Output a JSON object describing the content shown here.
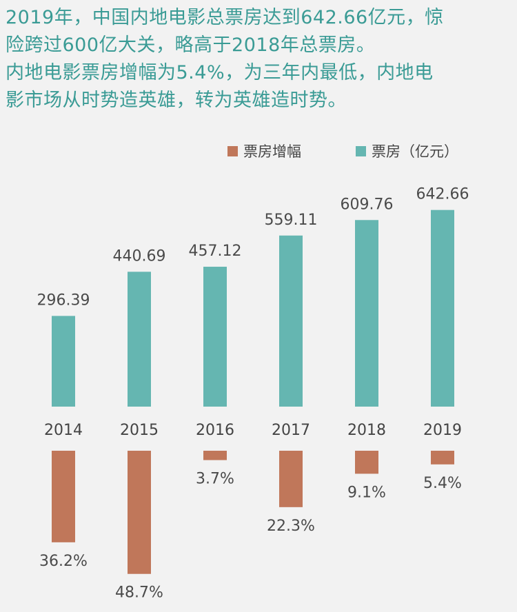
{
  "intro": {
    "line1": "2019年，中国内地电影总票房达到642.66亿元，惊",
    "line2": "险跨过600亿大关，略高于2018年总票房。",
    "line3": "内地电影票房增幅为5.4%，为三年内最低，内地电",
    "line4": "影市场从时势造英雄，转为英雄造时势。"
  },
  "colors": {
    "growth": "#c0775a",
    "boxoffice": "#65b6b1",
    "text": "#3a9b95"
  },
  "chart_data": {
    "type": "bar",
    "categories": [
      "2014",
      "2015",
      "2016",
      "2017",
      "2018",
      "2019"
    ],
    "series": [
      {
        "name": "票房（亿元）",
        "values": [
          296.39,
          440.69,
          457.12,
          559.11,
          609.76,
          642.66
        ],
        "labels": [
          "296.39",
          "440.69",
          "457.12",
          "559.11",
          "609.76",
          "642.66"
        ],
        "direction": "up"
      },
      {
        "name": "票房增幅",
        "values": [
          36.2,
          48.7,
          3.7,
          22.3,
          9.1,
          5.4
        ],
        "labels": [
          "36.2%",
          "48.7%",
          "3.7%",
          "22.3%",
          "9.1%",
          "5.4%"
        ],
        "direction": "down"
      }
    ],
    "legend": [
      {
        "label": "票房增幅",
        "series": 1
      },
      {
        "label": "票房（亿元）",
        "series": 0
      }
    ],
    "legend_position": "top-right",
    "grid": false
  }
}
